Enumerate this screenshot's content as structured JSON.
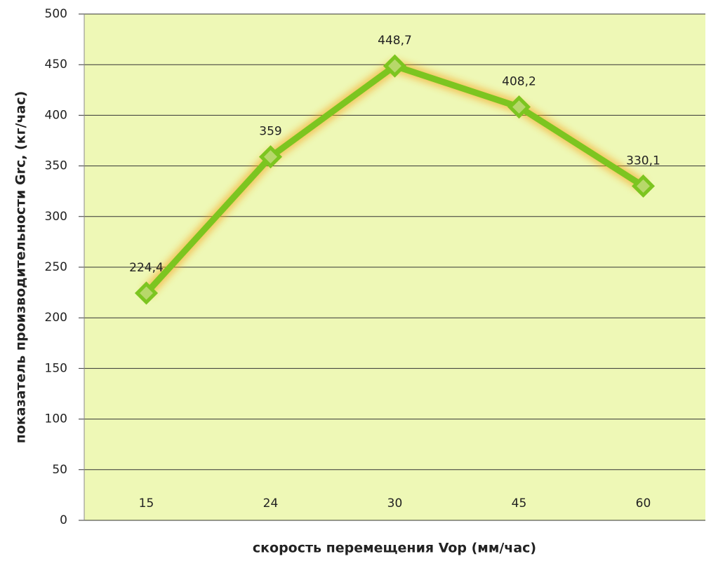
{
  "chart_data": {
    "type": "line",
    "x_label": "скорость перемещения  Vop  (мм/час)",
    "y_label": "показатель  производительности   Grc,  (кг/час)",
    "categories": [
      "15",
      "24",
      "30",
      "45",
      "60"
    ],
    "values": [
      224.4,
      359,
      448.7,
      408.2,
      330.1
    ],
    "value_labels": [
      "224,4",
      "359",
      "448,7",
      "408,2",
      "330,1"
    ],
    "color": "#7cc520",
    "ylim": [
      0,
      500
    ],
    "yticks": [
      0,
      50,
      100,
      150,
      200,
      250,
      300,
      350,
      400,
      450,
      500
    ],
    "grid": true
  }
}
